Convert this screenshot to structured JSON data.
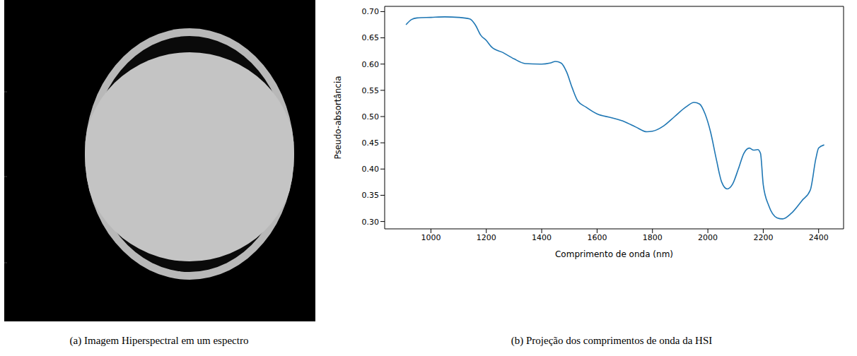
{
  "figure": {
    "captions": [
      "(a) Imagem Hiperspectral em um espectro",
      "(b) Projeção dos comprimentos de onda da HSI"
    ]
  },
  "chart_data": {
    "type": "line",
    "x_label": "Comprimento de onda (nm)",
    "y_label": "Pseudo-absortância",
    "x": [
      910,
      930,
      950,
      1000,
      1050,
      1100,
      1140,
      1160,
      1180,
      1200,
      1220,
      1260,
      1300,
      1340,
      1400,
      1430,
      1450,
      1470,
      1490,
      1510,
      1530,
      1560,
      1600,
      1650,
      1700,
      1740,
      1780,
      1800,
      1840,
      1880,
      1920,
      1950,
      1970,
      1990,
      2010,
      2030,
      2050,
      2070,
      2090,
      2110,
      2130,
      2150,
      2165,
      2180,
      2190,
      2200,
      2220,
      2250,
      2270,
      2300,
      2340,
      2370,
      2390,
      2400,
      2420
    ],
    "values": [
      0.675,
      0.685,
      0.688,
      0.689,
      0.69,
      0.689,
      0.686,
      0.675,
      0.655,
      0.645,
      0.632,
      0.622,
      0.61,
      0.601,
      0.6,
      0.602,
      0.605,
      0.602,
      0.585,
      0.555,
      0.53,
      0.518,
      0.505,
      0.498,
      0.49,
      0.48,
      0.471,
      0.472,
      0.482,
      0.5,
      0.518,
      0.527,
      0.524,
      0.505,
      0.47,
      0.42,
      0.375,
      0.362,
      0.372,
      0.4,
      0.43,
      0.44,
      0.436,
      0.437,
      0.43,
      0.37,
      0.33,
      0.307,
      0.305,
      0.315,
      0.34,
      0.36,
      0.42,
      0.44,
      0.446
    ],
    "color": "#1f77b4",
    "xlim": [
      833,
      2490
    ],
    "ylim": [
      0.286,
      0.71
    ],
    "xticks": [
      1000,
      1200,
      1400,
      1600,
      1800,
      2000,
      2200,
      2400
    ],
    "yticks": [
      {
        "value": 0.3,
        "label": "0.30"
      },
      0.35,
      {
        "value": 0.4,
        "label": "0.40"
      },
      0.45,
      {
        "value": 0.5,
        "label": "0.50"
      },
      0.55,
      {
        "value": 0.6,
        "label": "0.60"
      },
      0.65,
      {
        "value": 0.7,
        "label": "0.70"
      }
    ],
    "grid": false
  }
}
